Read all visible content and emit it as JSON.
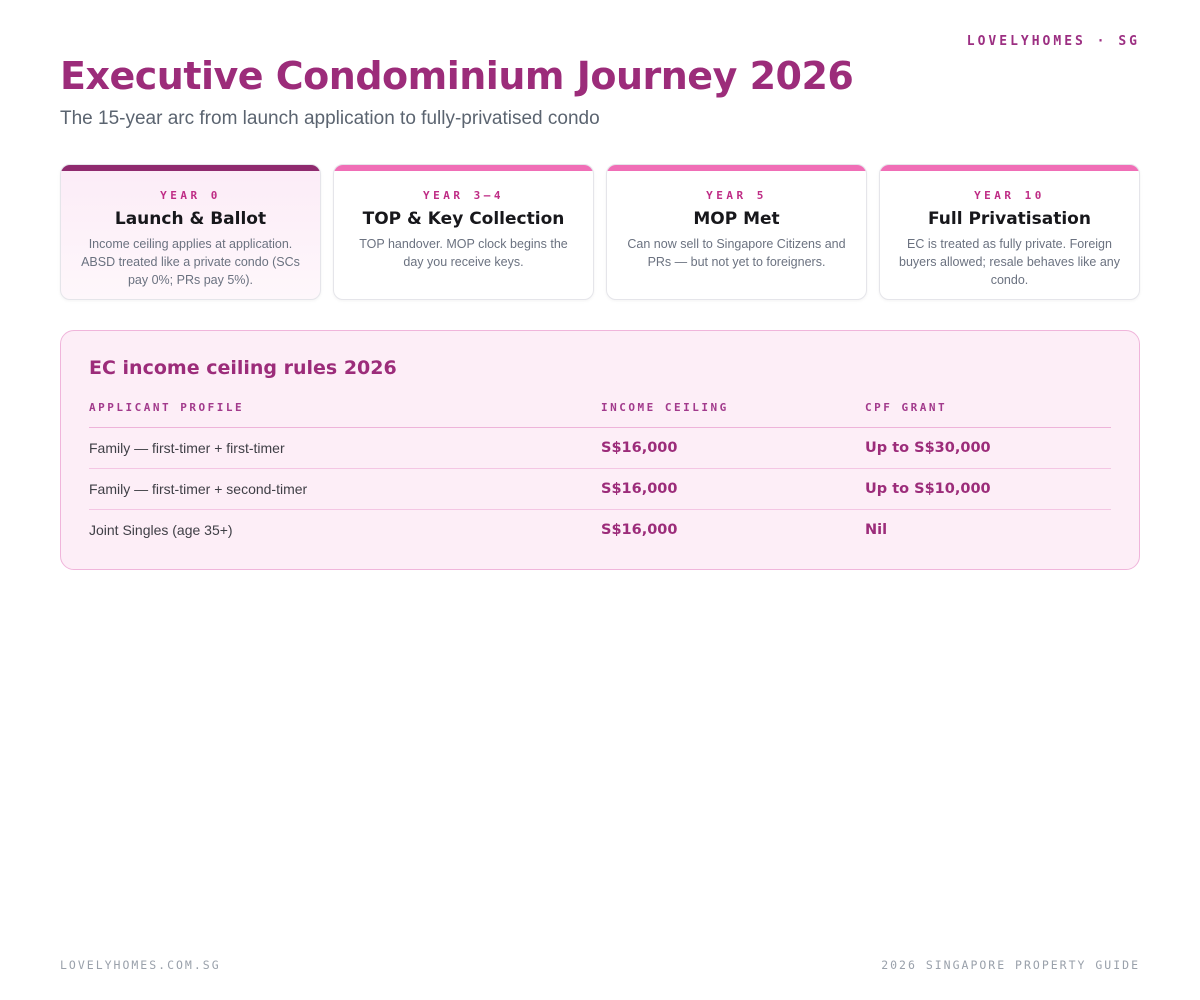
{
  "brand": "LOVELYHOMES · SG",
  "header": {
    "title": "Executive Condominium Journey 2026",
    "subtitle": "The 15-year arc from launch application to fully-privatised condo"
  },
  "timeline": {
    "cards": [
      {
        "year": "YEAR 0",
        "title": "Launch & Ballot",
        "body": "Income ceiling applies at application. ABSD treated like a private condo (SCs pay 0%; PRs pay 5%).",
        "highlight": true
      },
      {
        "year": "YEAR 3–4",
        "title": "TOP & Key Collection",
        "body": "TOP handover. MOP clock begins the day you receive keys.",
        "highlight": false
      },
      {
        "year": "YEAR 5",
        "title": "MOP Met",
        "body": "Can now sell to Singapore Citizens and PRs — but not yet to foreigners.",
        "highlight": false
      },
      {
        "year": "YEAR 10",
        "title": "Full Privatisation",
        "body": "EC is treated as fully private. Foreign buyers allowed; resale behaves like any condo.",
        "highlight": false
      }
    ]
  },
  "table_panel": {
    "title": "EC income ceiling rules 2026",
    "columns": [
      "APPLICANT PROFILE",
      "INCOME CEILING",
      "CPF GRANT"
    ],
    "rows": [
      [
        "Family — first-timer + first-timer",
        "S$16,000",
        "Up to S$30,000"
      ],
      [
        "Family — first-timer + second-timer",
        "S$16,000",
        "Up to S$10,000"
      ],
      [
        "Joint Singles (age 35+)",
        "S$16,000",
        "Nil"
      ]
    ]
  },
  "footer": {
    "left": "LOVELYHOMES.COM.SG",
    "right": "2026 SINGAPORE PROPERTY GUIDE"
  },
  "colors": {
    "accent_purple": "#9c2c7a",
    "accent_pink": "#f06eb6",
    "dark_bar": "#8f2a6e",
    "year_label": "#bf2d86",
    "panel_bg": "#fdeef7",
    "panel_border": "#f0b5db",
    "body_gray": "#6b7280",
    "footer_gray": "#9aa1ab"
  }
}
